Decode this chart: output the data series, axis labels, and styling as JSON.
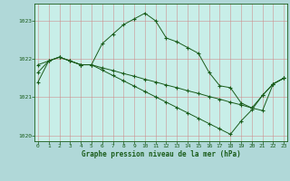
{
  "title": "Graphe pression niveau de la mer (hPa)",
  "background_color": "#b0d8d8",
  "plot_background_color": "#c8eee8",
  "grid_color": "#cc8888",
  "line_color": "#1a5c1a",
  "hours": [
    0,
    1,
    2,
    3,
    4,
    5,
    6,
    7,
    8,
    9,
    10,
    11,
    12,
    13,
    14,
    15,
    16,
    17,
    18,
    19,
    20,
    21,
    22,
    23
  ],
  "series1": [
    1021.85,
    1021.95,
    1022.05,
    1021.95,
    1021.85,
    1021.85,
    1022.4,
    1022.65,
    1022.9,
    1023.05,
    1023.2,
    1023.0,
    1022.55,
    1022.45,
    1022.3,
    1022.15,
    1021.65,
    1021.3,
    1021.25,
    1020.85,
    1020.72,
    1021.05,
    1021.35,
    1021.5
  ],
  "series2": [
    1021.65,
    1021.95,
    1022.05,
    1021.95,
    1021.85,
    1021.85,
    1021.77,
    1021.7,
    1021.62,
    1021.55,
    1021.47,
    1021.4,
    1021.32,
    1021.25,
    1021.17,
    1021.1,
    1021.02,
    1020.95,
    1020.87,
    1020.8,
    1020.72,
    1020.65,
    1021.35,
    1021.5
  ],
  "series3": [
    1021.4,
    1021.95,
    1022.05,
    1021.95,
    1021.85,
    1021.85,
    1021.71,
    1021.57,
    1021.43,
    1021.29,
    1021.15,
    1021.01,
    1020.87,
    1020.73,
    1020.59,
    1020.45,
    1020.31,
    1020.17,
    1020.03,
    1020.38,
    1020.67,
    1021.05,
    1021.35,
    1021.5
  ],
  "ylim": [
    1019.85,
    1023.45
  ],
  "xlim": [
    -0.3,
    23.3
  ],
  "yticks": [
    1020,
    1021,
    1022,
    1023
  ],
  "xticks": [
    0,
    1,
    2,
    3,
    4,
    5,
    6,
    7,
    8,
    9,
    10,
    11,
    12,
    13,
    14,
    15,
    16,
    17,
    18,
    19,
    20,
    21,
    22,
    23
  ],
  "figsize": [
    3.2,
    2.0
  ],
  "dpi": 100
}
